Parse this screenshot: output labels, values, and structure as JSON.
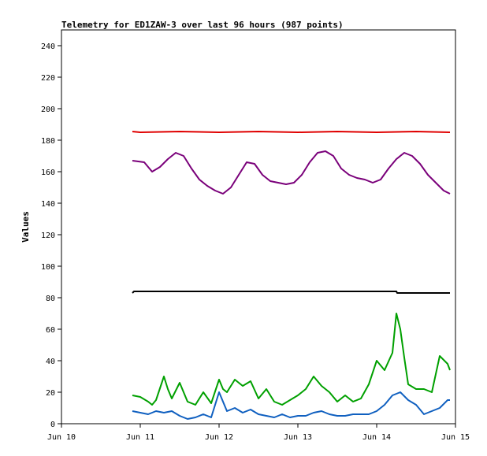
{
  "chart_data": {
    "type": "line",
    "title": "Telemetry for ED1ZAW-3 over last 96 hours (987 points)",
    "xlabel": "",
    "ylabel": "Values",
    "xlim": [
      "Jun 10",
      "Jun 15"
    ],
    "ylim": [
      0,
      250
    ],
    "x_ticks": [
      "Jun 10",
      "Jun 11",
      "Jun 12",
      "Jun 13",
      "Jun 14",
      "Jun 15"
    ],
    "y_ticks": [
      "0",
      "20",
      "40",
      "60",
      "80",
      "100",
      "120",
      "140",
      "160",
      "180",
      "200",
      "220",
      "240"
    ],
    "grid": false,
    "legend": "none",
    "series": [
      {
        "color": "#e00000",
        "x": [
          0.9,
          1.0,
          1.5,
          2.0,
          2.5,
          3.0,
          3.5,
          4.0,
          4.5,
          4.93
        ],
        "y": [
          185.5,
          185,
          185.5,
          185,
          185.5,
          185,
          185.5,
          185,
          185.5,
          185
        ]
      },
      {
        "color": "#7a007a",
        "x": [
          0.9,
          1.05,
          1.15,
          1.25,
          1.35,
          1.45,
          1.55,
          1.65,
          1.75,
          1.85,
          1.95,
          2.05,
          2.15,
          2.25,
          2.35,
          2.45,
          2.55,
          2.65,
          2.75,
          2.85,
          2.95,
          3.05,
          3.15,
          3.25,
          3.35,
          3.45,
          3.55,
          3.65,
          3.75,
          3.85,
          3.95,
          4.05,
          4.15,
          4.25,
          4.35,
          4.45,
          4.55,
          4.65,
          4.75,
          4.85,
          4.93
        ],
        "y": [
          167,
          166,
          160,
          163,
          168,
          172,
          170,
          162,
          155,
          151,
          148,
          146,
          150,
          158,
          166,
          165,
          158,
          154,
          153,
          152,
          153,
          158,
          166,
          172,
          173,
          170,
          162,
          158,
          156,
          155,
          153,
          155,
          162,
          168,
          172,
          170,
          165,
          158,
          153,
          148,
          146
        ]
      },
      {
        "color": "#000000",
        "x": [
          0.9,
          0.92,
          1.5,
          2.0,
          2.5,
          3.0,
          3.5,
          4.0,
          4.25,
          4.26,
          4.5,
          4.93
        ],
        "y": [
          83,
          84,
          84,
          84,
          84,
          84,
          84,
          84,
          84,
          83,
          83,
          83
        ]
      },
      {
        "color": "#00a000",
        "x": [
          0.9,
          1.0,
          1.1,
          1.15,
          1.2,
          1.3,
          1.35,
          1.4,
          1.5,
          1.6,
          1.7,
          1.8,
          1.9,
          2.0,
          2.05,
          2.1,
          2.2,
          2.3,
          2.4,
          2.5,
          2.6,
          2.7,
          2.8,
          2.9,
          3.0,
          3.1,
          3.2,
          3.3,
          3.4,
          3.5,
          3.6,
          3.7,
          3.8,
          3.9,
          4.0,
          4.1,
          4.2,
          4.25,
          4.3,
          4.35,
          4.4,
          4.5,
          4.6,
          4.7,
          4.8,
          4.9,
          4.93
        ],
        "y": [
          18,
          17,
          14,
          12,
          15,
          30,
          22,
          16,
          26,
          14,
          12,
          20,
          13,
          28,
          22,
          20,
          28,
          24,
          27,
          16,
          22,
          14,
          12,
          15,
          18,
          22,
          30,
          24,
          20,
          14,
          18,
          14,
          16,
          25,
          40,
          34,
          45,
          70,
          60,
          42,
          25,
          22,
          22,
          20,
          43,
          38,
          34
        ]
      },
      {
        "color": "#1060c0",
        "x": [
          0.9,
          1.0,
          1.1,
          1.2,
          1.3,
          1.4,
          1.5,
          1.6,
          1.7,
          1.8,
          1.9,
          2.0,
          2.1,
          2.2,
          2.3,
          2.4,
          2.5,
          2.6,
          2.7,
          2.8,
          2.9,
          3.0,
          3.1,
          3.2,
          3.3,
          3.4,
          3.5,
          3.6,
          3.7,
          3.8,
          3.9,
          4.0,
          4.1,
          4.2,
          4.3,
          4.4,
          4.5,
          4.6,
          4.7,
          4.8,
          4.9,
          4.93
        ],
        "y": [
          8,
          7,
          6,
          8,
          7,
          8,
          5,
          3,
          4,
          6,
          4,
          20,
          8,
          10,
          7,
          9,
          6,
          5,
          4,
          6,
          4,
          5,
          5,
          7,
          8,
          6,
          5,
          5,
          6,
          6,
          6,
          8,
          12,
          18,
          20,
          15,
          12,
          6,
          8,
          10,
          15,
          15
        ]
      }
    ]
  }
}
